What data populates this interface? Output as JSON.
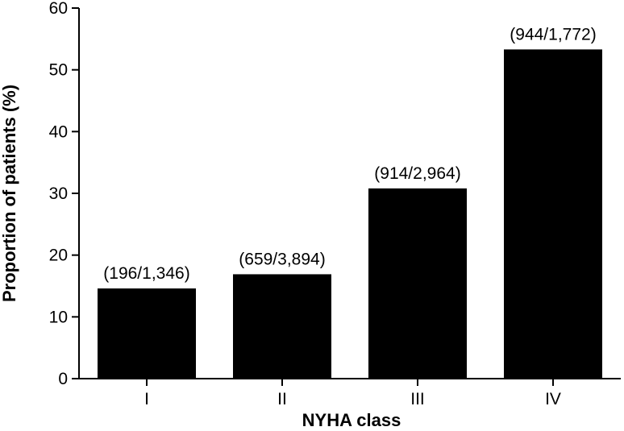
{
  "chart_data": {
    "type": "bar",
    "categories": [
      "I",
      "II",
      "III",
      "IV"
    ],
    "values": [
      14.6,
      16.9,
      30.8,
      53.3
    ],
    "data_labels": [
      "(196/1,346)",
      "(659/3,894)",
      "(914/2,964)",
      "(944/1,772)"
    ],
    "title": "",
    "xlabel": "NYHA class",
    "ylabel": "Proportion of patients (%)",
    "ylim": [
      0,
      60
    ],
    "yticks": [
      0,
      10,
      20,
      30,
      40,
      50,
      60
    ],
    "grid": false,
    "legend": "none",
    "bar_color": "#000000"
  }
}
